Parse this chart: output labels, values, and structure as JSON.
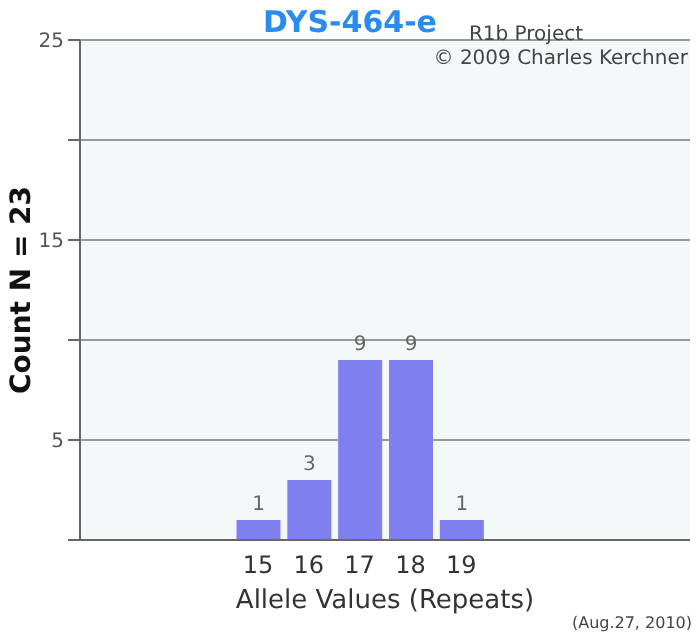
{
  "chart_data": {
    "type": "bar",
    "title": "DYS-464-e",
    "xlabel": "Allele Values (Repeats)",
    "ylabel": "Count N = 23",
    "categories": [
      null,
      null,
      null,
      "15",
      "16",
      "17",
      "18",
      "19",
      null,
      null,
      null,
      null
    ],
    "values": [
      null,
      null,
      null,
      1,
      3,
      9,
      9,
      1,
      null,
      null,
      null,
      null
    ],
    "value_labels": [
      null,
      null,
      null,
      "1",
      "3",
      "9",
      "9",
      "1",
      null,
      null,
      null,
      null
    ],
    "color": "#7f7ff0",
    "ylim": [
      0,
      25
    ],
    "yticks": [
      {
        "value": 0,
        "label": null
      },
      5,
      {
        "value": 10,
        "label": null
      },
      15,
      {
        "value": 20,
        "label": null
      },
      25
    ],
    "grid": "y",
    "annotations": [
      "R1b Project",
      "© 2009 Charles Kerchner",
      "(Aug.27, 2010)"
    ]
  }
}
